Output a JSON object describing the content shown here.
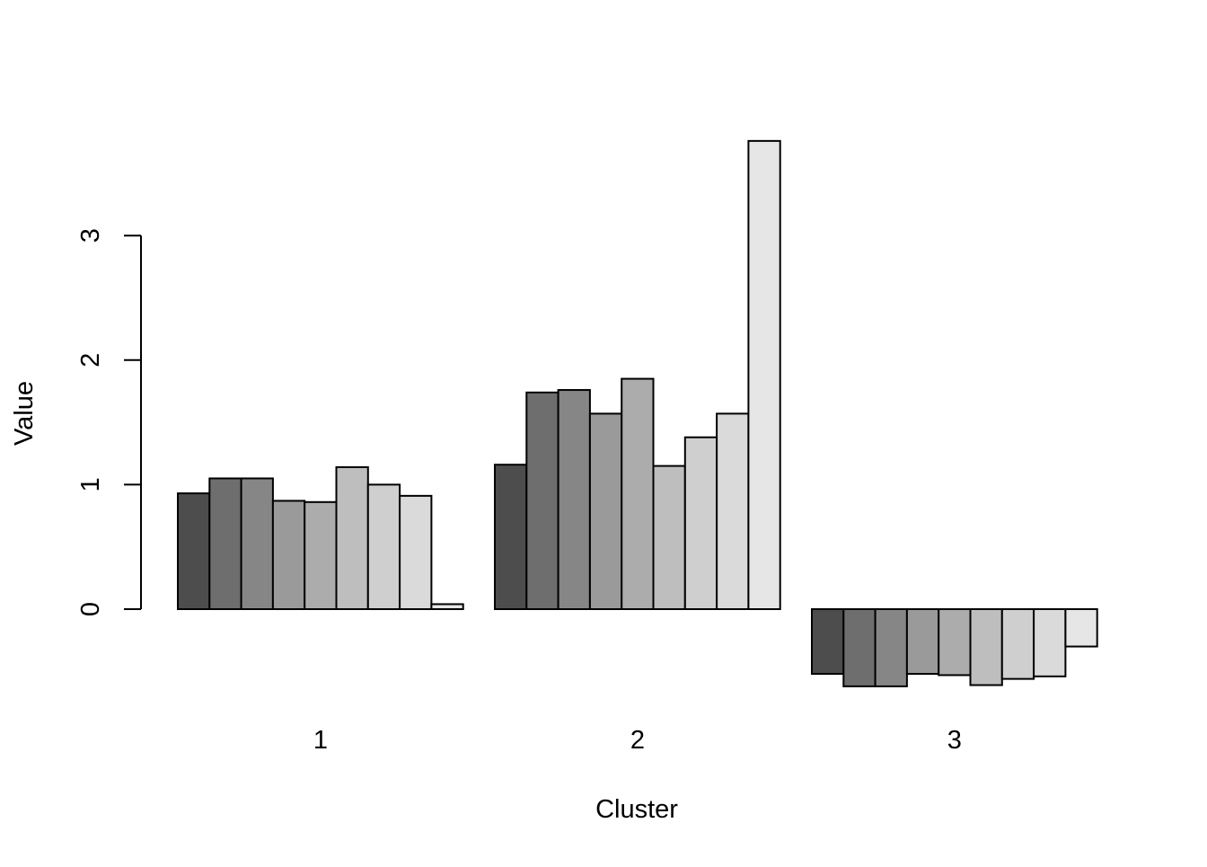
{
  "chart_data": {
    "type": "bar",
    "title": "",
    "xlabel": "Cluster",
    "ylabel": "Value",
    "categories": [
      "1",
      "2",
      "3"
    ],
    "yticks": [
      "0",
      "1",
      "2",
      "3"
    ],
    "ylim": [
      -0.75,
      3.75
    ],
    "grid": false,
    "legend": "none",
    "series_colors": [
      "#4d4d4d",
      "#6e6e6e",
      "#868686",
      "#9a9a9a",
      "#acacac",
      "#bebebe",
      "#cfcfcf",
      "#dadada",
      "#e6e6e6"
    ],
    "series": [
      {
        "values": [
          0.93,
          1.16,
          -0.52
        ]
      },
      {
        "values": [
          1.05,
          1.74,
          -0.62
        ]
      },
      {
        "values": [
          1.05,
          1.76,
          -0.62
        ]
      },
      {
        "values": [
          0.87,
          1.57,
          -0.52
        ]
      },
      {
        "values": [
          0.86,
          1.85,
          -0.53
        ]
      },
      {
        "values": [
          1.14,
          1.15,
          -0.61
        ]
      },
      {
        "values": [
          1.0,
          1.38,
          -0.56
        ]
      },
      {
        "values": [
          0.91,
          1.57,
          -0.54
        ]
      },
      {
        "values": [
          0.04,
          3.76,
          -0.3
        ]
      }
    ]
  }
}
